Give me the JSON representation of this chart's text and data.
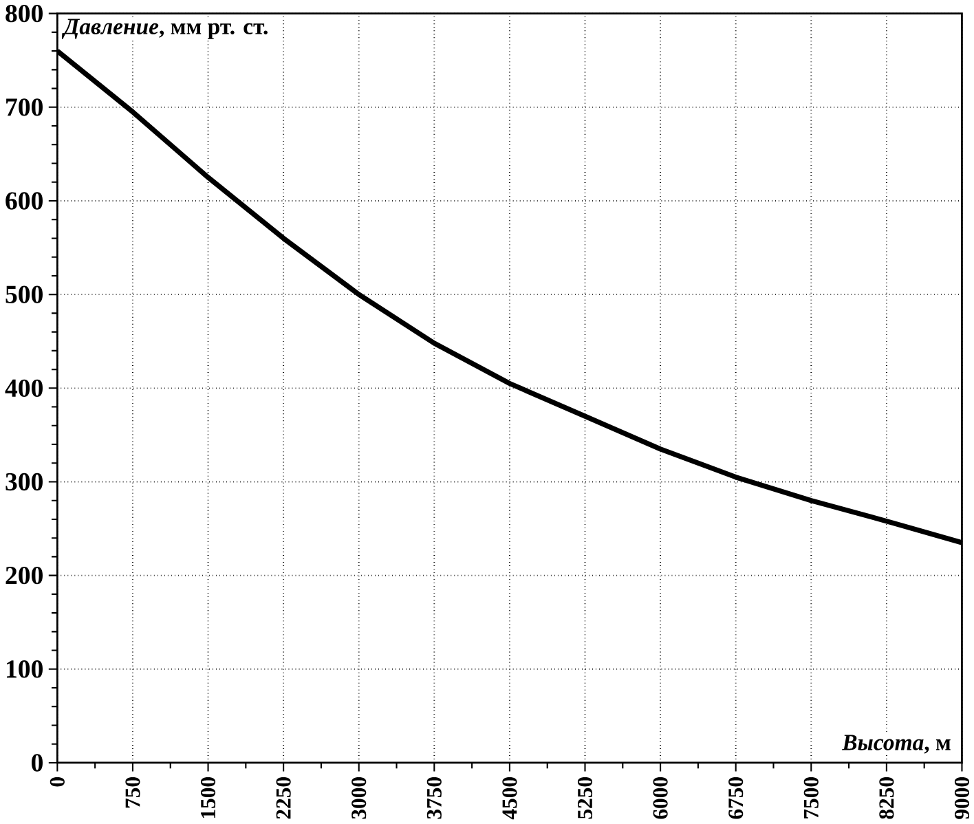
{
  "chart_data": {
    "type": "line",
    "xlabel": "*Высота*, м",
    "ylabel": "*Давление*, мм рт. ст.",
    "x": [
      0,
      750,
      1500,
      2250,
      3000,
      3750,
      4500,
      5250,
      6000,
      6750,
      7500,
      8250,
      9000
    ],
    "series": [
      {
        "color": "#000000",
        "values": [
          760,
          695,
          625,
          560,
          500,
          448,
          405,
          370,
          335,
          305,
          280,
          258,
          235
        ]
      }
    ],
    "xlim": [
      0,
      9000
    ],
    "xticks": [
      0,
      750,
      1500,
      2250,
      3000,
      3750,
      4500,
      5250,
      6000,
      6750,
      7500,
      8250,
      9000
    ],
    "ylim": [
      0,
      800
    ],
    "yticks": [
      0,
      100,
      200,
      300,
      400,
      500,
      600,
      700,
      800
    ],
    "grid": true,
    "marker": "none",
    "line_style": "solid"
  }
}
